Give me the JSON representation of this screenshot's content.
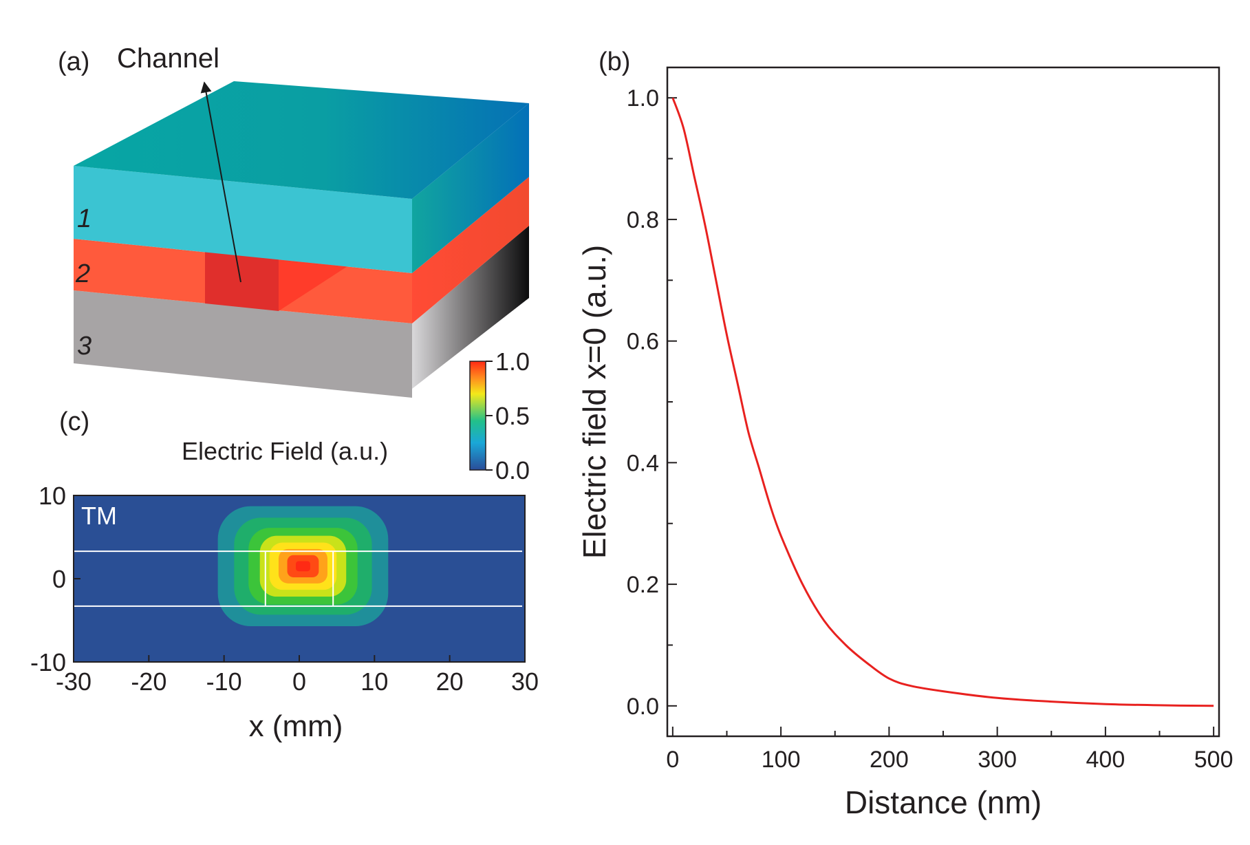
{
  "panels": {
    "a": {
      "label": "(a)",
      "channel_label": "Channel",
      "layer_labels": [
        "1",
        "2",
        "3"
      ],
      "colors": {
        "layer1": "#3bc4d2",
        "layer2": "#ff5a3c",
        "layer3": "#a7a4a5"
      }
    },
    "c": {
      "label": "(c)",
      "colorbar_title": "Electric Field (a.u.)",
      "mode_label": "TM"
    }
  },
  "chart_data": [
    {
      "id": "b",
      "type": "line",
      "panel_label": "(b)",
      "xlabel": "Distance (nm)",
      "ylabel": "Electric field x=0 (a.u.)",
      "xlim": [
        -5,
        505
      ],
      "ylim": [
        -0.05,
        1.05
      ],
      "xticks": [
        0,
        100,
        200,
        300,
        400,
        500
      ],
      "yticks": [
        0.0,
        0.2,
        0.4,
        0.6,
        0.8,
        1.0
      ],
      "xtick_labels": [
        "0",
        "100",
        "200",
        "300",
        "400",
        "500"
      ],
      "ytick_labels": [
        "0.0",
        "0.2",
        "0.4",
        "0.6",
        "0.8",
        "1.0"
      ],
      "series": [
        {
          "name": "Electric field at x=0",
          "color": "#e8211f",
          "x": [
            0,
            10,
            20,
            30,
            40,
            50,
            60,
            70,
            80,
            90,
            100,
            120,
            140,
            160,
            180,
            200,
            220,
            250,
            300,
            350,
            400,
            450,
            500
          ],
          "y": [
            1.0,
            0.95,
            0.87,
            0.79,
            0.7,
            0.61,
            0.53,
            0.45,
            0.39,
            0.33,
            0.28,
            0.2,
            0.14,
            0.1,
            0.07,
            0.045,
            0.033,
            0.024,
            0.013,
            0.007,
            0.003,
            0.001,
            0.0
          ]
        }
      ]
    },
    {
      "id": "c",
      "type": "heatmap",
      "xlabel": "x (mm)",
      "ylabel": "",
      "xlim": [
        -30,
        30
      ],
      "ylim": [
        -10,
        10
      ],
      "xticks": [
        -30,
        -20,
        -10,
        0,
        10,
        20,
        30
      ],
      "yticks": [
        -10,
        0,
        10
      ],
      "xtick_labels": [
        "-30",
        "-20",
        "-10",
        "0",
        "10",
        "20",
        "30"
      ],
      "ytick_labels": [
        "-10",
        "0",
        "10"
      ],
      "colorbar": {
        "range": [
          0.0,
          1.0
        ],
        "ticks": [
          0.0,
          0.5,
          1.0
        ],
        "tick_labels": [
          "0.0",
          "0.5",
          "1.0"
        ],
        "colors": [
          "#2a4d99",
          "#1aa7d8",
          "#22c08a",
          "#f3e91a",
          "#ff8a1e",
          "#ff2a14"
        ]
      },
      "background_color": "#2a4f95",
      "field": {
        "center_x": 0.5,
        "center_y": 1.5,
        "sigma_x": 5.5,
        "sigma_y": 3.5,
        "peak": 1.0
      },
      "waveguide": {
        "core_y": [
          -3.3,
          3.3
        ],
        "channel_x": [
          -4.5,
          4.5
        ]
      }
    }
  ]
}
